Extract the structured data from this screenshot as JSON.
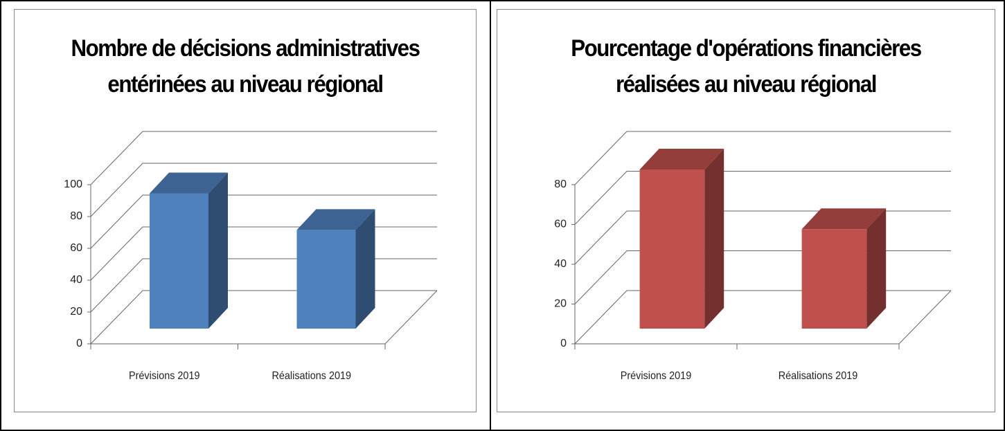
{
  "chart_data": [
    {
      "type": "bar3d",
      "title": "Nombre de décisions administratives entérinées au niveau régional",
      "categories": [
        "Prévisions 2019",
        "Réalisations 2019"
      ],
      "values": [
        85,
        62
      ],
      "color": "#4f81bd",
      "ylim": [
        0,
        100
      ],
      "yticks": [
        0,
        20,
        40,
        60,
        80,
        100
      ],
      "grid": true
    },
    {
      "type": "bar3d",
      "title": "Pourcentage d'opérations financières réalisées au niveau régional",
      "categories": [
        "Prévisions 2019",
        "Réalisations 2019"
      ],
      "values": [
        80,
        50
      ],
      "color": "#c0504d",
      "ylim": [
        0,
        80
      ],
      "yticks": [
        0,
        20,
        40,
        60,
        80
      ],
      "grid": true
    }
  ]
}
